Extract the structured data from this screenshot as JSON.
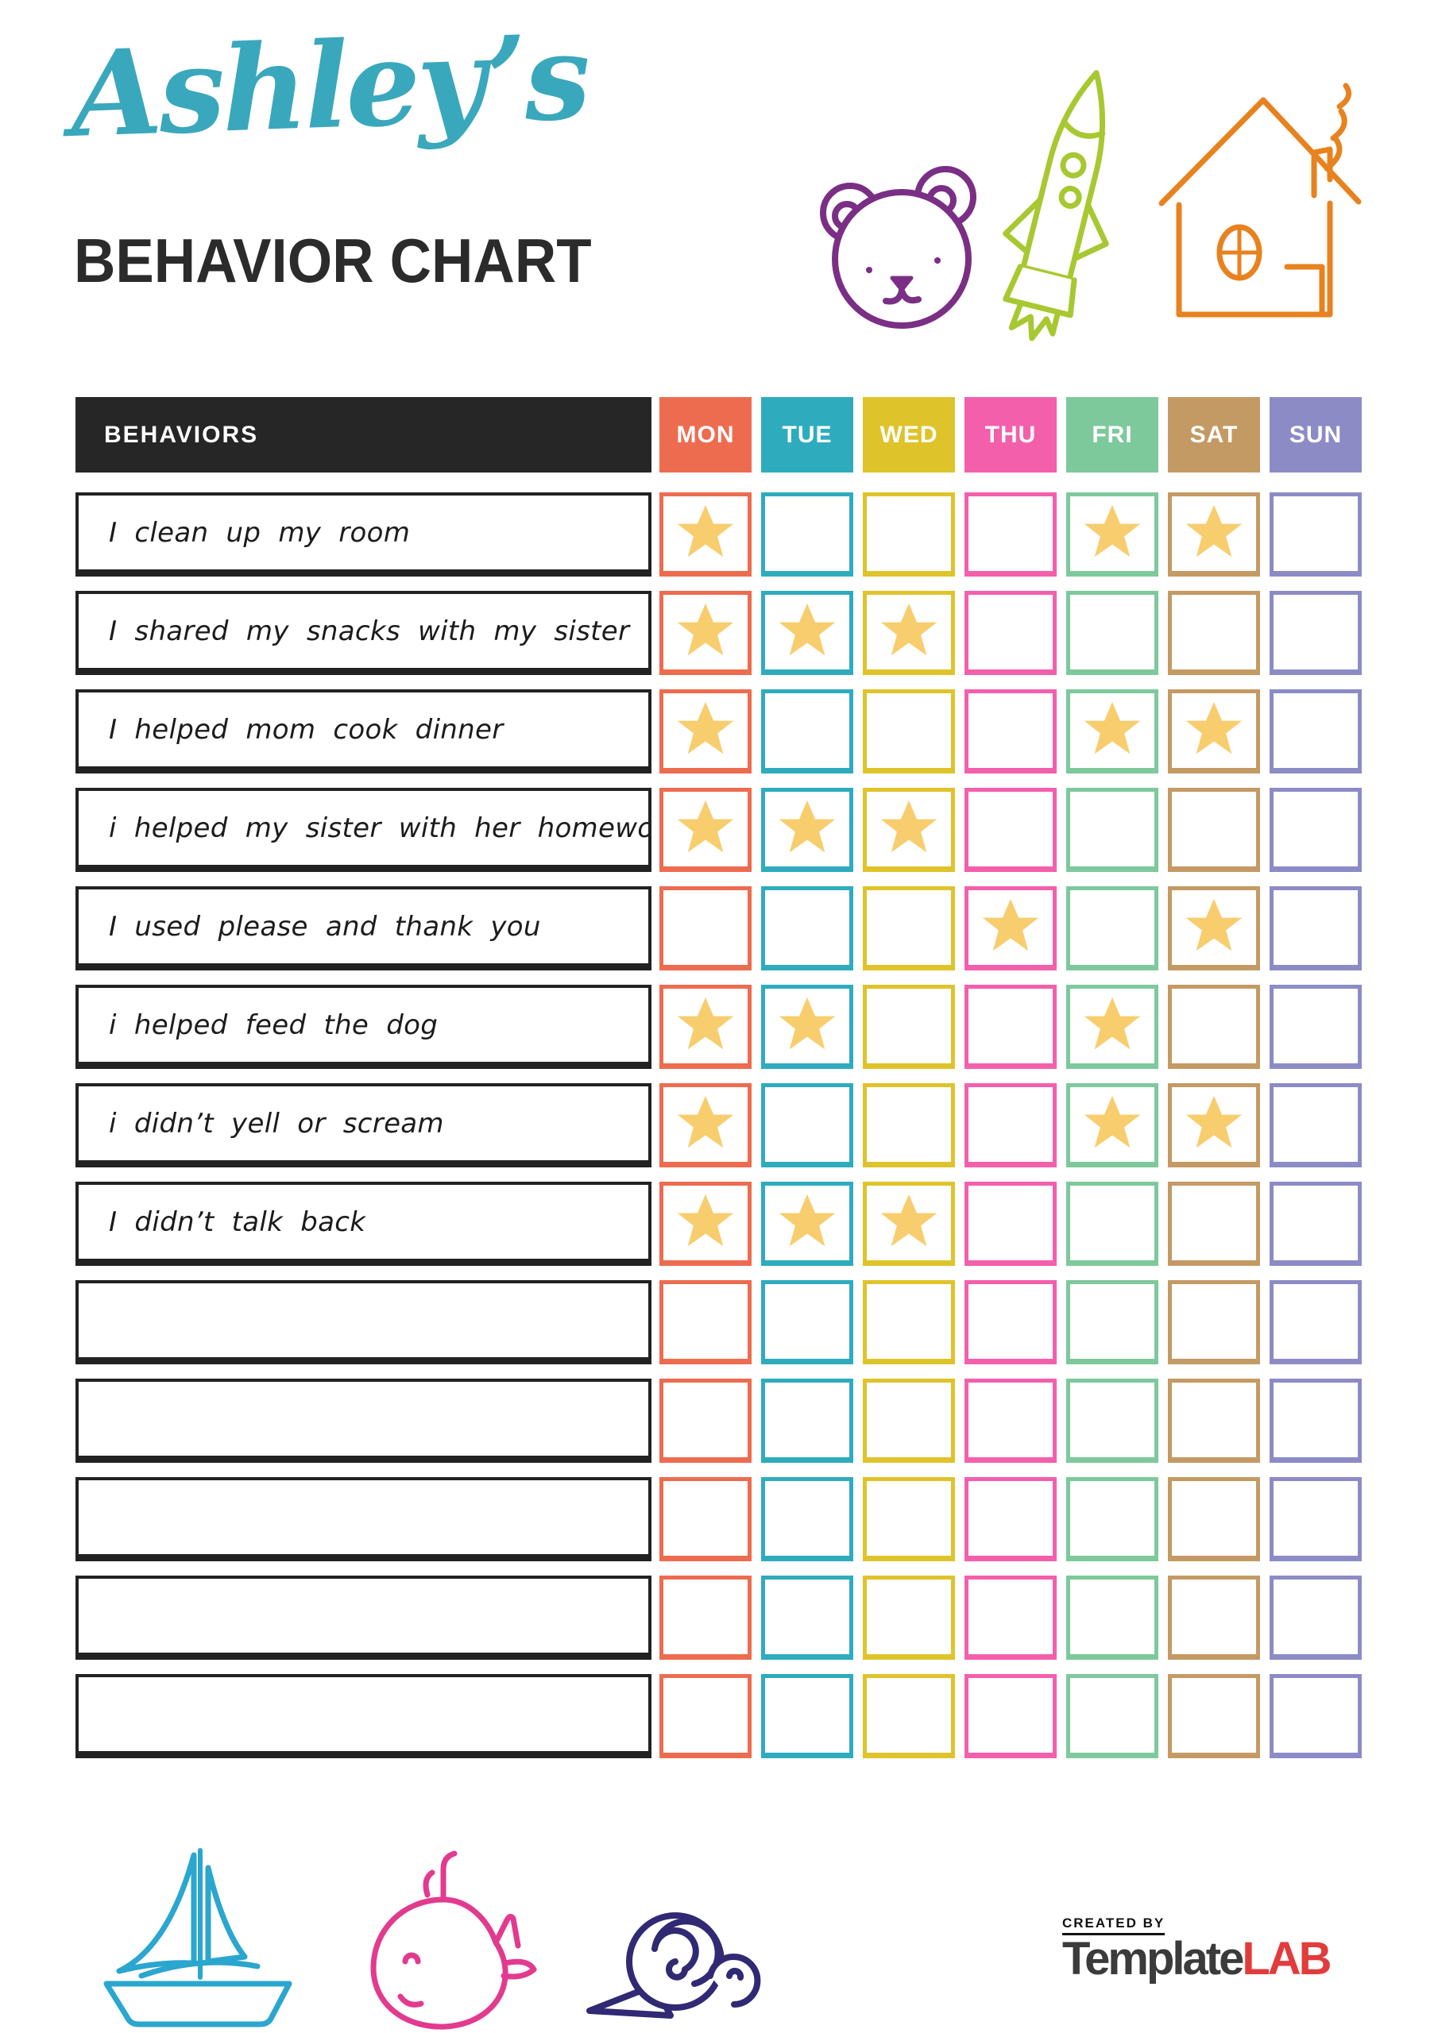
{
  "header": {
    "name": "Ashley’s",
    "title": "BEHAVIOR CHART",
    "name_color": "#3AA8BC",
    "title_color": "#2b2b2b"
  },
  "table": {
    "behaviors_label": "BEHAVIORS",
    "header_bg": "#262626",
    "star_color": "#F8CD6E",
    "days": [
      {
        "label": "MON",
        "color": "#ED6C50"
      },
      {
        "label": "TUE",
        "color": "#2EACBE"
      },
      {
        "label": "WED",
        "color": "#DFC32B"
      },
      {
        "label": "THU",
        "color": "#F45FAC"
      },
      {
        "label": "FRI",
        "color": "#7DC99B"
      },
      {
        "label": "SAT",
        "color": "#C49A64"
      },
      {
        "label": "SUN",
        "color": "#8D8BC6"
      }
    ],
    "rows": [
      {
        "label": "I clean up my room",
        "stars": [
          "MON",
          "FRI",
          "SAT"
        ]
      },
      {
        "label": "I shared my snacks with my sister",
        "stars": [
          "MON",
          "TUE",
          "WED"
        ]
      },
      {
        "label": "I helped mom cook dinner",
        "stars": [
          "MON",
          "FRI",
          "SAT"
        ]
      },
      {
        "label": "i helped my sister with her homework",
        "stars": [
          "MON",
          "TUE",
          "WED"
        ]
      },
      {
        "label": "I used please and thank you",
        "stars": [
          "THU",
          "SAT"
        ]
      },
      {
        "label": "i helped feed the dog",
        "stars": [
          "MON",
          "TUE",
          "FRI"
        ]
      },
      {
        "label": "i didn’t yell or scream",
        "stars": [
          "MON",
          "FRI",
          "SAT"
        ]
      },
      {
        "label": "I didn’t talk back",
        "stars": [
          "MON",
          "TUE",
          "WED"
        ]
      },
      {
        "label": "",
        "stars": []
      },
      {
        "label": "",
        "stars": []
      },
      {
        "label": "",
        "stars": []
      },
      {
        "label": "",
        "stars": []
      },
      {
        "label": "",
        "stars": []
      }
    ]
  },
  "doodles": {
    "colors": {
      "bear": "#7A2F85",
      "rocket": "#A8C832",
      "house": "#E8821E",
      "sailboat": "#2AA6CF",
      "whale": "#E23A8E",
      "snail": "#312973"
    }
  },
  "footer": {
    "credit": "CREATED BY",
    "brand_main": "Template",
    "brand_accent": "LAB"
  }
}
